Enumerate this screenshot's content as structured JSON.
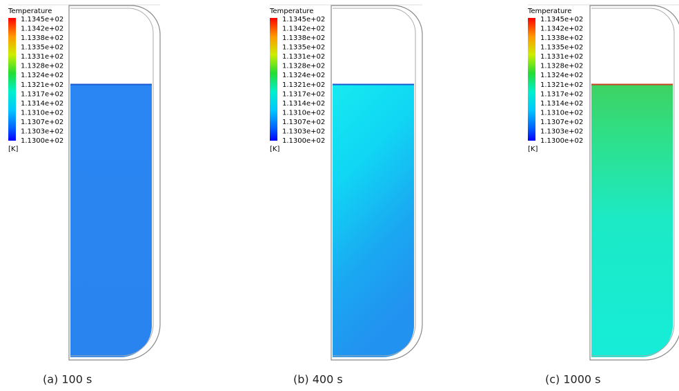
{
  "panels": [
    {
      "legend": {
        "title": "Temperature",
        "labels": [
          "1.1345e+02",
          "1.1342e+02",
          "1.1338e+02",
          "1.1335e+02",
          "1.1331e+02",
          "1.1328e+02",
          "1.1324e+02",
          "1.1321e+02",
          "1.1317e+02",
          "1.1314e+02",
          "1.1310e+02",
          "1.1307e+02",
          "1.1303e+02",
          "1.1300e+02"
        ],
        "unit": "[K]"
      },
      "caption": "(a) 100 s"
    },
    {
      "legend": {
        "title": "Temperature",
        "labels": [
          "1.1345e+02",
          "1.1342e+02",
          "1.1338e+02",
          "1.1335e+02",
          "1.1331e+02",
          "1.1328e+02",
          "1.1324e+02",
          "1.1321e+02",
          "1.1317e+02",
          "1.1314e+02",
          "1.1310e+02",
          "1.1307e+02",
          "1.1303e+02",
          "1.1300e+02"
        ],
        "unit": "[K]"
      },
      "caption": "(b) 400 s"
    },
    {
      "legend": {
        "title": "Temperature",
        "labels": [
          "1.1345e+02",
          "1.1342e+02",
          "1.1338e+02",
          "1.1335e+02",
          "1.1331e+02",
          "1.1328e+02",
          "1.1324e+02",
          "1.1321e+02",
          "1.1317e+02",
          "1.1314e+02",
          "1.1310e+02",
          "1.1307e+02",
          "1.1303e+02",
          "1.1300e+02"
        ],
        "unit": "[K]"
      },
      "caption": "(c) 1000 s"
    }
  ]
}
